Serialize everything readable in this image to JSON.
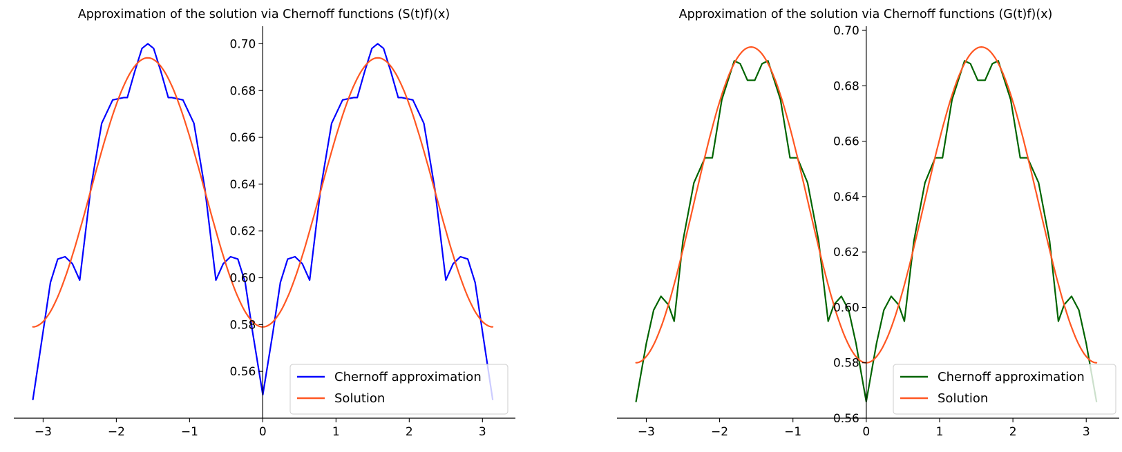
{
  "chart_data": [
    {
      "type": "line",
      "title": "Approximation of the solution via Chernoff functions (S(t)f)(x)",
      "xlabel": "",
      "ylabel": "",
      "xlim": [
        -3.4,
        3.45
      ],
      "ylim": [
        0.54,
        0.7075
      ],
      "xticks": [
        -3,
        -2,
        -1,
        0,
        1,
        2,
        3
      ],
      "xtick_labels": [
        "−3",
        "−2",
        "−1",
        "0",
        "1",
        "2",
        "3"
      ],
      "yticks": [
        0.56,
        0.58,
        0.6,
        0.62,
        0.64,
        0.66,
        0.68,
        0.7
      ],
      "ytick_labels": [
        "0.56",
        "0.58",
        "0.60",
        "0.62",
        "0.64",
        "0.66",
        "0.68",
        "0.70"
      ],
      "legend_location": "lower right",
      "series": [
        {
          "name": "Chernoff approximation",
          "color": "#0000ff",
          "x": [
            -3.14,
            -3.0,
            -2.9,
            -2.8,
            -2.7,
            -2.6,
            -2.5,
            -2.35,
            -2.2,
            -2.05,
            -1.9,
            -1.85,
            -1.75,
            -1.65,
            -1.57,
            -1.49,
            -1.39,
            -1.29,
            -1.24,
            -1.09,
            -0.94,
            -0.79,
            -0.64,
            -0.54,
            -0.44,
            -0.34,
            -0.24,
            -0.14,
            0.0,
            0.14,
            0.24,
            0.34,
            0.44,
            0.54,
            0.64,
            0.79,
            0.94,
            1.09,
            1.24,
            1.29,
            1.39,
            1.49,
            1.57,
            1.65,
            1.75,
            1.85,
            1.9,
            2.05,
            2.2,
            2.35,
            2.5,
            2.6,
            2.7,
            2.8,
            2.9,
            3.0,
            3.14
          ],
          "y": [
            0.548,
            0.577,
            0.598,
            0.608,
            0.609,
            0.606,
            0.599,
            0.638,
            0.666,
            0.676,
            0.677,
            0.677,
            0.688,
            0.698,
            0.7,
            0.698,
            0.688,
            0.677,
            0.677,
            0.676,
            0.666,
            0.638,
            0.599,
            0.606,
            0.609,
            0.608,
            0.598,
            0.577,
            0.55,
            0.577,
            0.598,
            0.608,
            0.609,
            0.606,
            0.599,
            0.638,
            0.666,
            0.676,
            0.677,
            0.677,
            0.688,
            0.698,
            0.7,
            0.698,
            0.688,
            0.677,
            0.677,
            0.676,
            0.666,
            0.638,
            0.599,
            0.606,
            0.609,
            0.608,
            0.598,
            0.577,
            0.548
          ]
        },
        {
          "name": "Solution",
          "color": "#ff5722",
          "function": "0.6365 + 0.0575*cos(2*(x - 1.5708))",
          "x_range": [
            -3.14,
            3.14
          ]
        }
      ]
    },
    {
      "type": "line",
      "title": "Approximation of the solution via Chernoff functions (G(t)f)(x)",
      "xlabel": "",
      "ylabel": "",
      "xlim": [
        -3.4,
        3.45
      ],
      "ylim": [
        0.56,
        0.7015
      ],
      "xticks": [
        -3,
        -2,
        -1,
        0,
        1,
        2,
        3
      ],
      "xtick_labels": [
        "−3",
        "−2",
        "−1",
        "0",
        "1",
        "2",
        "3"
      ],
      "yticks": [
        0.56,
        0.58,
        0.6,
        0.62,
        0.64,
        0.66,
        0.68,
        0.7
      ],
      "ytick_labels": [
        "0.56",
        "0.58",
        "0.60",
        "0.62",
        "0.64",
        "0.66",
        "0.68",
        "0.70"
      ],
      "legend_location": "lower right",
      "series": [
        {
          "name": "Chernoff approximation",
          "color": "#006400",
          "x": [
            -3.14,
            -3.0,
            -2.9,
            -2.8,
            -2.7,
            -2.62,
            -2.5,
            -2.35,
            -2.2,
            -2.1,
            -1.97,
            -1.8,
            -1.72,
            -1.62,
            -1.52,
            -1.42,
            -1.34,
            -1.17,
            -1.04,
            -0.94,
            -0.8,
            -0.65,
            -0.52,
            -0.44,
            -0.34,
            -0.24,
            -0.14,
            0.0,
            0.14,
            0.24,
            0.34,
            0.44,
            0.52,
            0.65,
            0.8,
            0.94,
            1.04,
            1.17,
            1.34,
            1.42,
            1.52,
            1.62,
            1.72,
            1.8,
            1.97,
            2.1,
            2.2,
            2.35,
            2.5,
            2.62,
            2.7,
            2.8,
            2.9,
            3.0,
            3.14
          ],
          "y": [
            0.566,
            0.587,
            0.599,
            0.604,
            0.601,
            0.595,
            0.624,
            0.645,
            0.654,
            0.654,
            0.675,
            0.689,
            0.688,
            0.682,
            0.682,
            0.688,
            0.689,
            0.675,
            0.654,
            0.654,
            0.645,
            0.624,
            0.595,
            0.601,
            0.604,
            0.599,
            0.587,
            0.566,
            0.587,
            0.599,
            0.604,
            0.601,
            0.595,
            0.624,
            0.645,
            0.654,
            0.654,
            0.675,
            0.689,
            0.688,
            0.682,
            0.682,
            0.688,
            0.689,
            0.675,
            0.654,
            0.654,
            0.645,
            0.624,
            0.595,
            0.601,
            0.604,
            0.599,
            0.587,
            0.566
          ]
        },
        {
          "name": "Solution",
          "color": "#ff5722",
          "function": "0.637 + 0.057*cos(2*(x - 1.5708))",
          "x_range": [
            -3.14,
            3.14
          ]
        }
      ]
    }
  ]
}
